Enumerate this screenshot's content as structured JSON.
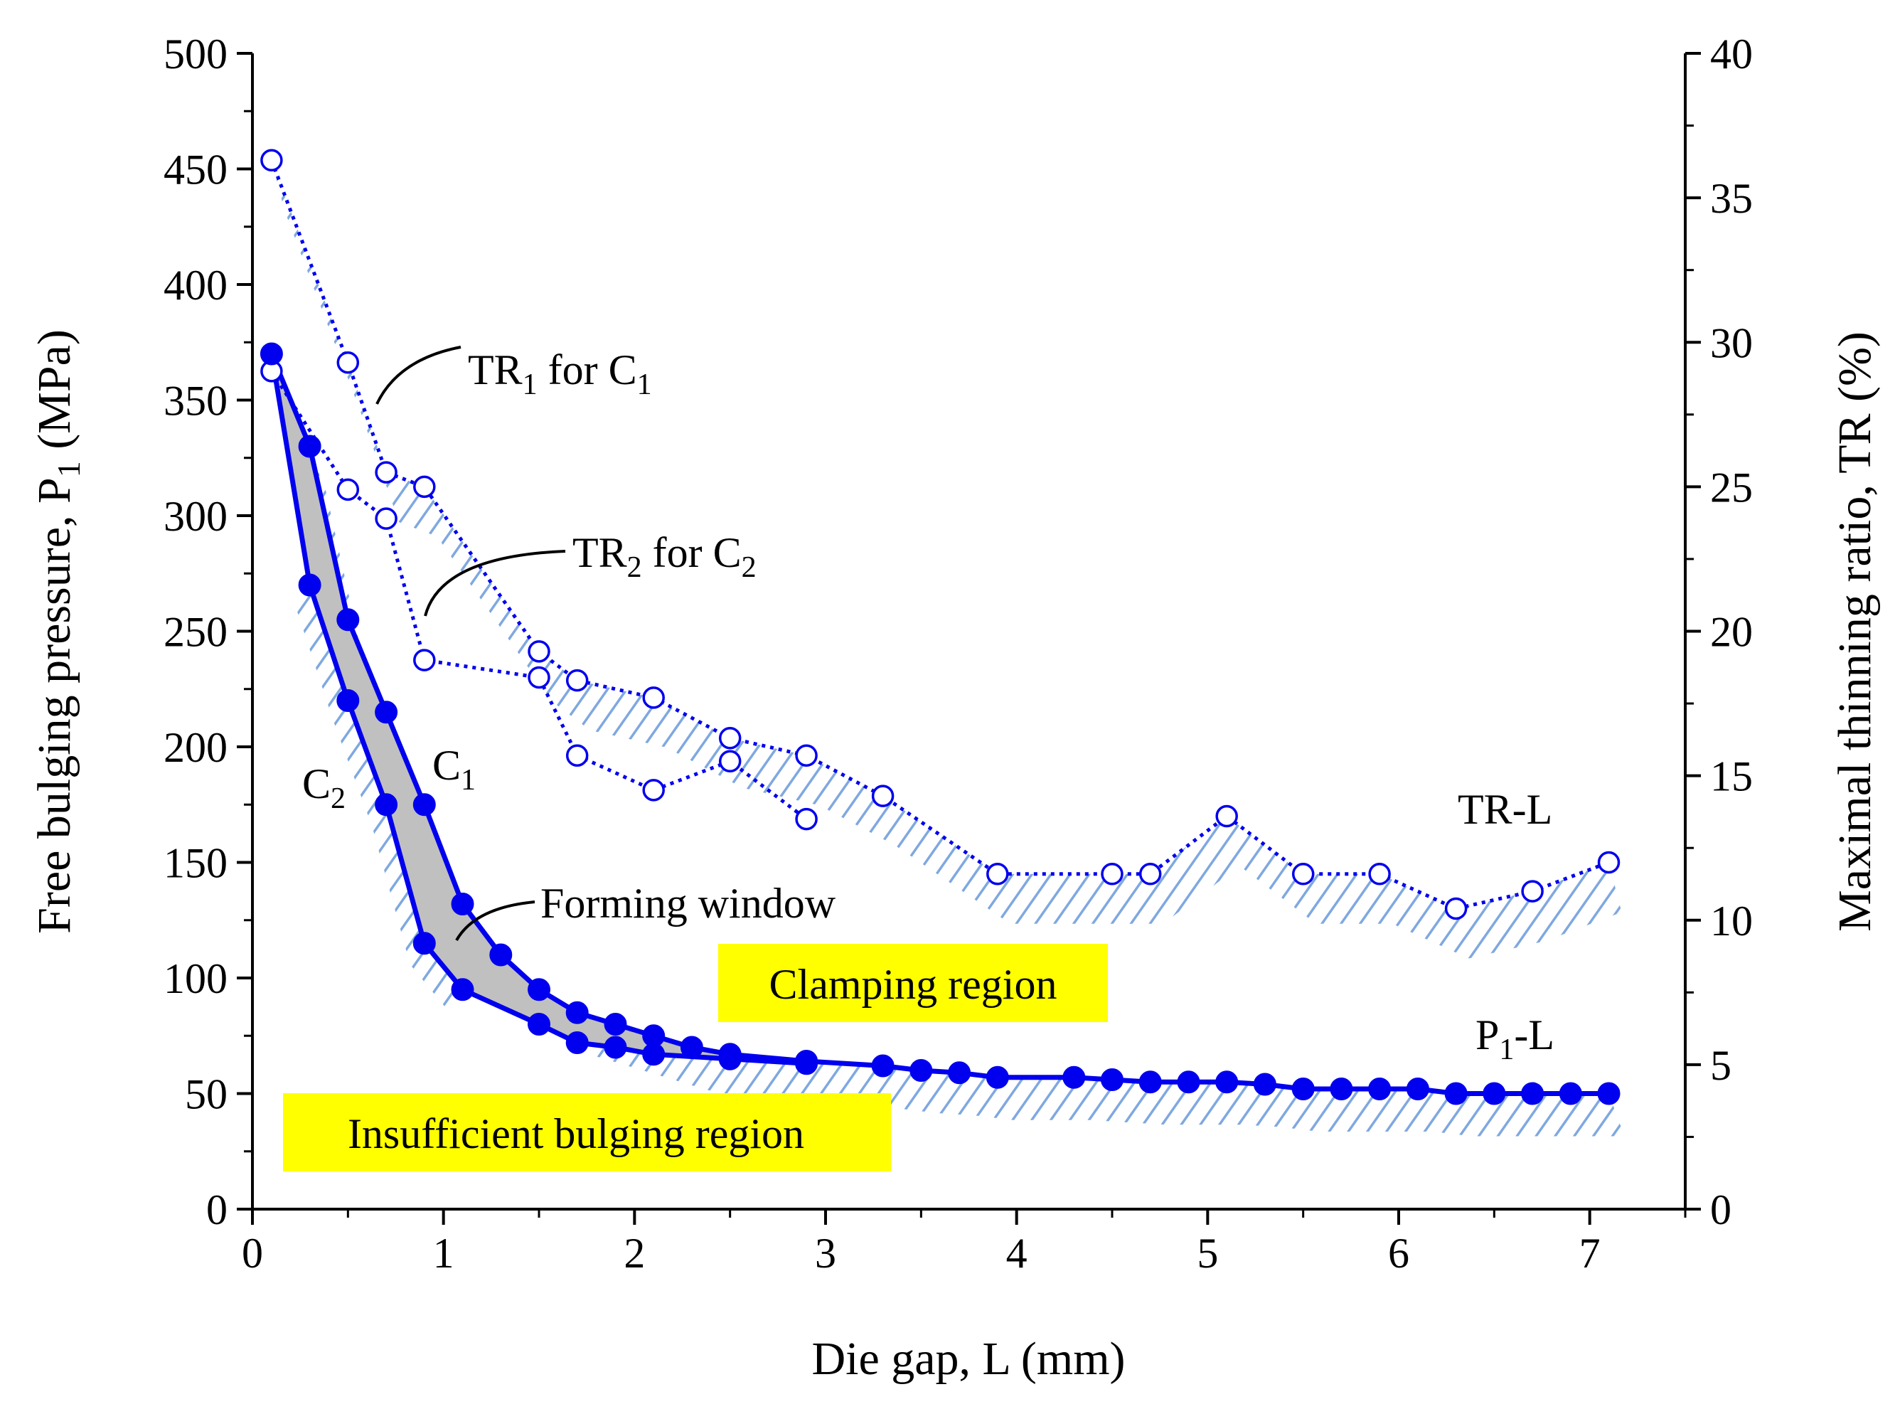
{
  "chart_data": {
    "type": "line",
    "title": "",
    "xlabel": "Die gap, L (mm)",
    "ylabel": {
      "prefix": "Free bulging pressure, P",
      "sub": "1",
      "suffix": " (MPa)"
    },
    "y2label": "Maximal thinning ratio, TR (%)",
    "xlim": [
      0,
      7.5
    ],
    "ylim": [
      0,
      500
    ],
    "y2lim": [
      0,
      40
    ],
    "x_ticks": [
      "0",
      "1",
      "2",
      "3",
      "4",
      "5",
      "6",
      "7"
    ],
    "y_ticks": [
      "0",
      "50",
      "100",
      "150",
      "200",
      "250",
      "300",
      "350",
      "400",
      "450",
      "500"
    ],
    "y2_ticks": [
      "0",
      "5",
      "10",
      "15",
      "20",
      "25",
      "30",
      "35",
      "40"
    ],
    "series": [
      {
        "name": "C1",
        "axis": "left",
        "marker": "filled-circle",
        "line": "solid",
        "x": [
          0.1,
          0.3,
          0.5,
          0.7,
          0.9,
          1.1,
          1.3,
          1.5,
          1.7,
          1.9,
          2.1,
          2.3,
          2.5,
          2.9,
          3.3,
          3.5,
          3.7,
          3.9,
          4.3,
          4.5,
          4.7,
          4.9,
          5.1,
          5.3,
          5.5,
          5.7,
          5.9,
          6.1,
          6.3,
          6.5,
          6.7,
          6.9,
          7.1
        ],
        "y": [
          370,
          330,
          255,
          215,
          175,
          132,
          110,
          95,
          85,
          80,
          75,
          70,
          67,
          64,
          62,
          60,
          59,
          57,
          57,
          56,
          55,
          55,
          55,
          54,
          52,
          52,
          52,
          52,
          50,
          50,
          50,
          50,
          50
        ]
      },
      {
        "name": "C2",
        "axis": "left",
        "marker": "filled-circle",
        "line": "solid",
        "x": [
          0.3,
          0.5,
          0.7,
          0.9,
          1.1,
          1.5,
          1.7,
          1.9,
          2.1,
          2.5,
          2.9
        ],
        "y": [
          270,
          220,
          175,
          115,
          95,
          80,
          72,
          70,
          67,
          65,
          63
        ]
      },
      {
        "name": "TR1 for C1",
        "axis": "right",
        "marker": "open-circle",
        "line": "dotted",
        "x": [
          0.1,
          0.5,
          0.7,
          0.9,
          1.5,
          1.7,
          2.1,
          2.5,
          2.9,
          3.3,
          3.9,
          4.5,
          4.7,
          5.1,
          5.5,
          5.9,
          6.3,
          6.7,
          7.1
        ],
        "y": [
          36.3,
          29.3,
          25.5,
          25.0,
          19.3,
          18.3,
          17.7,
          16.3,
          15.7,
          14.3,
          11.6,
          11.6,
          11.6,
          13.6,
          11.6,
          11.6,
          10.4,
          11.0,
          12.0
        ]
      },
      {
        "name": "TR2 for C2",
        "axis": "right",
        "marker": "open-circle",
        "line": "dotted",
        "x": [
          0.1,
          0.5,
          0.7,
          0.9,
          1.5,
          1.7,
          2.1,
          2.5,
          2.9
        ],
        "y": [
          29.0,
          24.9,
          23.9,
          19.0,
          18.4,
          15.7,
          14.5,
          15.5,
          13.5
        ]
      }
    ],
    "annotations": {
      "tr1": {
        "prefix": "TR",
        "sub": "1",
        "mid": " for C",
        "sub2": "1"
      },
      "tr2": {
        "prefix": "TR",
        "sub": "2",
        "mid": " for C",
        "sub2": "2"
      },
      "c1": {
        "prefix": "C",
        "sub": "1"
      },
      "c2": {
        "prefix": "C",
        "sub": "2"
      },
      "forming_window": "Forming window",
      "tr_l": "TR-L",
      "p1_l": {
        "prefix": "P",
        "sub": "1",
        "suffix": "-L"
      },
      "clamping_region": "Clamping region",
      "insufficient_region": "Insufficient bulging region"
    },
    "colors": {
      "series": "#0000ee",
      "hatch": "#7fa8e0",
      "window_fill": "#c0c0c0",
      "region_box": "#ffff00",
      "axis": "#000000"
    }
  }
}
